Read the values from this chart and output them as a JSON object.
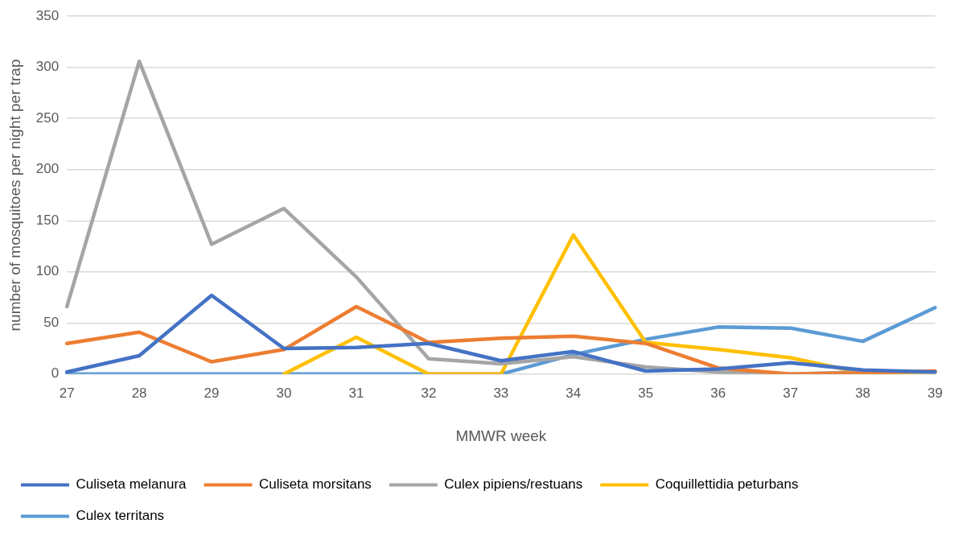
{
  "chart_data": {
    "type": "line",
    "xlabel": "MMWR week",
    "ylabel": "number of mosquitoes per night per trap",
    "categories": [
      "27",
      "28",
      "29",
      "30",
      "31",
      "32",
      "33",
      "34",
      "35",
      "36",
      "37",
      "38",
      "39"
    ],
    "series": [
      {
        "name": "Culiseta melanura",
        "color": "#4472c4",
        "values": [
          2,
          18,
          77,
          25,
          26,
          30,
          13,
          22,
          3,
          5,
          11,
          4,
          2
        ]
      },
      {
        "name": "Culiseta morsitans",
        "color": "#ed7d31",
        "values": [
          30,
          41,
          12,
          24,
          66,
          31,
          35,
          37,
          30,
          6,
          0,
          1,
          3
        ]
      },
      {
        "name": "Culex pipiens/restuans",
        "color": "#a5a5a5",
        "values": [
          66,
          306,
          127,
          162,
          95,
          15,
          10,
          17,
          7,
          2,
          0,
          2,
          2
        ]
      },
      {
        "name": "Coquillettidia peturbans",
        "color": "#ffc000",
        "values": [
          null,
          null,
          null,
          0,
          36,
          0,
          0,
          136,
          31,
          24,
          16,
          1,
          2
        ]
      },
      {
        "name": "Culex territans",
        "color": "#5b9bd5",
        "values": [
          0,
          0,
          0,
          0,
          0,
          0,
          0,
          19,
          34,
          46,
          45,
          32,
          65
        ]
      }
    ],
    "ylim": [
      0,
      350
    ],
    "yticks": [
      0,
      50,
      100,
      150,
      200,
      250,
      300,
      350
    ],
    "grid": "y",
    "legend": "bottom",
    "marker": "none",
    "line_style": "solid"
  }
}
